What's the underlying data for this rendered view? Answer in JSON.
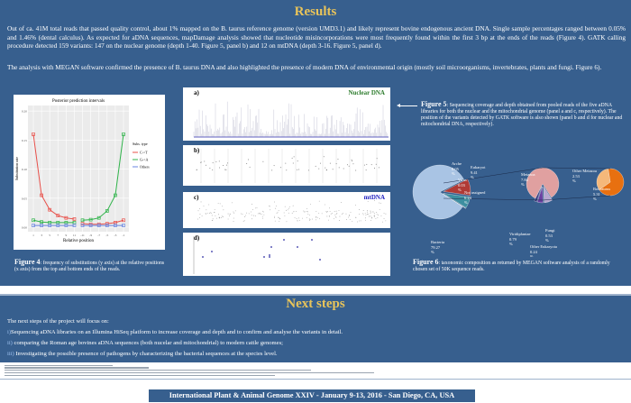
{
  "results": {
    "title": "Results",
    "para1": "Out of ca. 41M total reads that passed quality control, about 1% mapped on the B. taurus reference genome (version UMD3.1) and likely represent bovine endogenous ancient DNA. Single sample percentages ranged between 0.05% and 1.46% (dental calculus). As expected for aDNA sequences, mapDamage analysis showed that nucleotide misincorporations were most frequently found within the first 3 bp at the ends of the reads (Figure 4). GATK calling procedure detected 159 variants:  147 on the nuclear genome (depth 1-40. Figure 5, panel b) and 12 on mtDNA (depth 3-16. Figure 5, panel d).",
    "para2": "The analysis with MEGAN software confirmed the presence of B. taurus DNA and also highlighted the presence of modern DNA of environmental origin (mostly soil microorganisms, invertebrates, plants and fungi. Figure 6)."
  },
  "figure4": {
    "caption_label": "Figure 4",
    "caption_text": ": frequency of substitutions (y axis) at the relative positions (x axis) from the top and bottom ends of the reads.",
    "chart_data": {
      "type": "line",
      "title": "Posterior prediction intervals",
      "xlabel": "Relative position",
      "ylabel": "Substitution rate",
      "ylim": [
        0,
        0.2
      ],
      "yticks": [
        "0.00",
        "0.05",
        "0.10",
        "0.15",
        "0.20"
      ],
      "categories": [
        "1",
        "3",
        "5",
        "7",
        "9",
        "11",
        "-11",
        "-9",
        "-7",
        "-5",
        "-3",
        "-1"
      ],
      "legend_title": "Subs. type",
      "legend_placement": "right",
      "grid": true,
      "series": [
        {
          "name": "C->T",
          "color": "#e8504a",
          "values": [
            0.16,
            0.055,
            0.03,
            0.02,
            0.016,
            0.014,
            0.006,
            0.005,
            0.005,
            0.006,
            0.008,
            0.012
          ]
        },
        {
          "name": "G->A",
          "color": "#2fb34a",
          "values": [
            0.012,
            0.009,
            0.008,
            0.008,
            0.008,
            0.008,
            0.012,
            0.013,
            0.016,
            0.028,
            0.055,
            0.16
          ]
        },
        {
          "name": "Others",
          "color": "#6a86e0",
          "values": [
            0.003,
            0.003,
            0.003,
            0.003,
            0.003,
            0.003,
            0.003,
            0.003,
            0.003,
            0.003,
            0.003,
            0.003
          ]
        }
      ]
    }
  },
  "figure5": {
    "panels": [
      "a)",
      "b)",
      "c)",
      "d)"
    ],
    "nuclear_label": "Nuclear DNA",
    "mt_label": "mtDNA",
    "caption_label": "Figure 5",
    "caption_text": ": Sequencing coverage and depth obtained from pooled reads of the five aDNA libraries for both the nuclear and the mitochondrial genome (panel a and c, respectively). The position of the variants detected by GATK software is also shown (panel b and d for nuclear and mitochondrial DNA, respectively).",
    "arrow_icon": "arrow-left-icon"
  },
  "figure6": {
    "caption_label": "Figure 6",
    "caption_text": ": taxonomic composition as returned by MEGAN software analysis of a randomly chosen set of 50K sequence reads.",
    "chart_data": [
      {
        "type": "pie",
        "slices": [
          {
            "label": "Bacteria",
            "value": "79.27",
            "color": "#a9c4e4"
          },
          {
            "label": "Eukaryot",
            "value": "9.41",
            "color": "#b03a35"
          },
          {
            "label": "Not assigned",
            "value": "6.24",
            "color": "#3d8fa0"
          },
          {
            "label": "Virus",
            "value": "0.03",
            "color": "#8aa83e"
          },
          {
            "label": "Arche",
            "value": "0.05",
            "color": "#e8e84a"
          }
        ]
      },
      {
        "type": "pie",
        "slices": [
          {
            "label": "Metazoa",
            "value": "7.84",
            "color": "#e0a0a0"
          },
          {
            "label": "Viridiplantae",
            "value": "0.79",
            "color": "#b8a8d0"
          },
          {
            "label": "Fungi",
            "value": "0.53",
            "color": "#6a3fa0"
          },
          {
            "label": "Other Eukaryota",
            "value": "0.24",
            "color": "#3a3a80"
          }
        ]
      },
      {
        "type": "pie",
        "slices": [
          {
            "label": "Bos taurus",
            "value": "5.31",
            "color": "#e87010"
          },
          {
            "label": "Other Metazoa",
            "value": "2.53",
            "color": "#f5b87a"
          }
        ]
      }
    ]
  },
  "next": {
    "title": "Next steps",
    "intro": "The next steps of the project will focus on:",
    "items": [
      {
        "num": "i)",
        "text": "Sequencing aDNA libraries on an Illumina HiSeq platform to increase coverage and depth and to confirm and analyse the variants in detail."
      },
      {
        "num": "ii)",
        "text": "comparing the Roman age bovines aDNA sequences (both nucelar and mitochondrial) to modern cattle genomes;"
      },
      {
        "num": "iii)",
        "text": "Investigating the possible presence of pathogens by characterizing the bacterial sequences at the species level."
      }
    ]
  },
  "banner": "International Plant & Animal Genome XXIV - January 9-13, 2016  - San Diego, CA, USA"
}
